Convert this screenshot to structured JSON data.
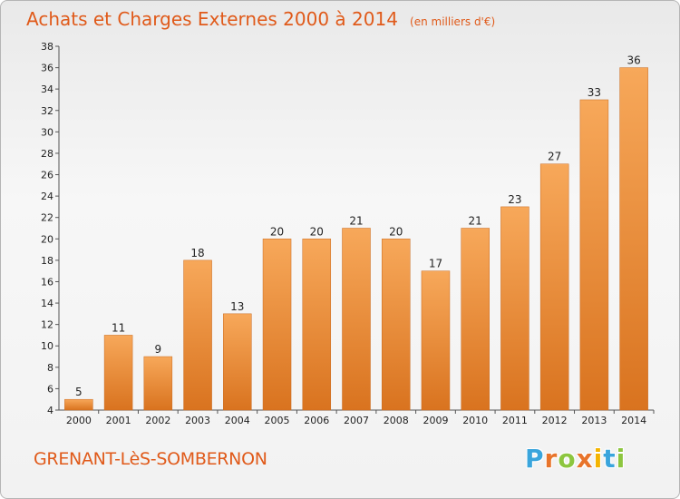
{
  "header": {
    "title": "Achats et Charges Externes 2000 à 2014",
    "unit_note": "(en milliers d'€)"
  },
  "footer": {
    "commune": "GRENANT-LèS-SOMBERNON",
    "logo_letters": [
      "P",
      "r",
      "o",
      "x",
      "i",
      "t",
      "i"
    ],
    "logo_colors": [
      "#3aa5dc",
      "#e8742b",
      "#8dc63f",
      "#e8742b",
      "#f4b400",
      "#3aa5dc",
      "#8dc63f"
    ]
  },
  "chart_data": {
    "type": "bar",
    "title": "Achats et Charges Externes 2000 à 2014",
    "subtitle": "(en milliers d'€)",
    "xlabel": "",
    "ylabel": "",
    "categories": [
      "2000",
      "2001",
      "2002",
      "2003",
      "2004",
      "2005",
      "2006",
      "2007",
      "2008",
      "2009",
      "2010",
      "2011",
      "2012",
      "2013",
      "2014"
    ],
    "values": [
      5,
      11,
      9,
      18,
      13,
      20,
      20,
      21,
      20,
      17,
      21,
      23,
      27,
      33,
      36
    ],
    "ylim": [
      4,
      38
    ],
    "yticks": [
      4,
      6,
      8,
      10,
      12,
      14,
      16,
      18,
      20,
      22,
      24,
      26,
      28,
      30,
      32,
      34,
      36,
      38
    ],
    "grid": false,
    "legend": "none",
    "bar_color": "#f0923a",
    "bar_color_light": "#f7a85a",
    "bar_color_dark": "#d9731f"
  }
}
